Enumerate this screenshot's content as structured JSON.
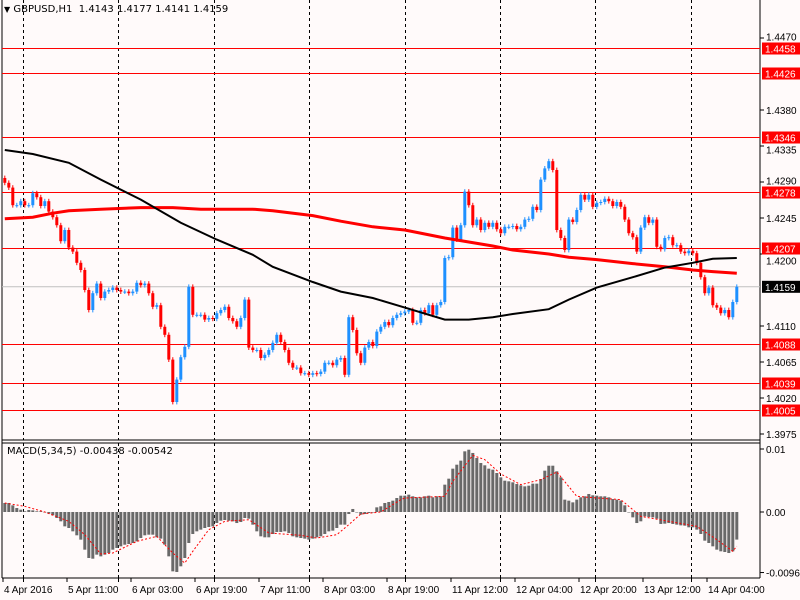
{
  "header": {
    "symbol": "GBPUSD,H1",
    "ohlc": "1.4143 1.4177 1.4141 1.4159",
    "menu_icon": "triangle-down-icon"
  },
  "macd_label": "MACD(5,34,5) -0.00438 -0.00542",
  "colors": {
    "background": "#fffafa",
    "bull": "#1e90ff",
    "bear": "#ff0000",
    "ma_black": "#000000",
    "ma_red": "#ff0000",
    "level": "#ff0000",
    "histogram": "#696969",
    "signal": "#ff0000",
    "current_price_box": "#000000"
  },
  "chart_data": [
    {
      "type": "candlestick",
      "title": "GBPUSD,H1",
      "ylim": [
        1.3975,
        1.447
      ],
      "grid": "vertical dashed",
      "y_ticks": [
        "1.4470",
        "1.4380",
        "1.4335",
        "1.4290",
        "1.4245",
        "1.4200",
        "1.4110",
        "1.4065",
        "1.4020",
        "1.3975"
      ],
      "x_ticks": [
        "4 Apr 2016",
        "5 Apr 11:00",
        "6 Apr 03:00",
        "6 Apr 19:00",
        "7 Apr 11:00",
        "8 Apr 03:00",
        "8 Apr 19:00",
        "11 Apr 12:00",
        "12 Apr 04:00",
        "12 Apr 20:00",
        "13 Apr 12:00",
        "14 Apr 04:00"
      ],
      "current_price": "1.4159",
      "levels": [
        "1.4458",
        "1.4426",
        "1.4346",
        "1.4278",
        "1.4207",
        "1.4088",
        "1.4039",
        "1.4005"
      ],
      "first_open": 1.4295,
      "closes": [
        1.4289,
        1.4283,
        1.4261,
        1.4261,
        1.4266,
        1.4261,
        1.4261,
        1.4276,
        1.4271,
        1.426,
        1.4266,
        1.4253,
        1.4246,
        1.4236,
        1.4216,
        1.423,
        1.4208,
        1.4203,
        1.4189,
        1.418,
        1.4155,
        1.413,
        1.4151,
        1.4163,
        1.4145,
        1.4153,
        1.4155,
        1.4158,
        1.4155,
        1.4153,
        1.4153,
        1.4151,
        1.4153,
        1.4164,
        1.4161,
        1.4163,
        1.4151,
        1.4134,
        1.4136,
        1.4109,
        1.4099,
        1.4068,
        1.4015,
        1.4043,
        1.4071,
        1.4084,
        1.4159,
        1.4124,
        1.4124,
        1.4124,
        1.4118,
        1.412,
        1.4119,
        1.4126,
        1.413,
        1.4134,
        1.412,
        1.4116,
        1.4109,
        1.412,
        1.4143,
        1.4083,
        1.408,
        1.408,
        1.407,
        1.4074,
        1.408,
        1.4089,
        1.4099,
        1.409,
        1.408,
        1.4064,
        1.4058,
        1.4058,
        1.4051,
        1.4051,
        1.4049,
        1.4051,
        1.405,
        1.4053,
        1.4064,
        1.4064,
        1.4061,
        1.4068,
        1.407,
        1.4049,
        1.4121,
        1.4105,
        1.4076,
        1.4064,
        1.4083,
        1.409,
        1.4085,
        1.4103,
        1.4109,
        1.4115,
        1.4111,
        1.412,
        1.4124,
        1.4126,
        1.4128,
        1.413,
        1.4114,
        1.4114,
        1.413,
        1.4126,
        1.4136,
        1.4124,
        1.4136,
        1.414,
        1.4195,
        1.4196,
        1.4233,
        1.4218,
        1.4236,
        1.4278,
        1.4261,
        1.4236,
        1.4243,
        1.423,
        1.4239,
        1.4234,
        1.4239,
        1.4231,
        1.4226,
        1.4234,
        1.4234,
        1.4235,
        1.4231,
        1.4234,
        1.4243,
        1.4244,
        1.4259,
        1.4255,
        1.4293,
        1.4307,
        1.4316,
        1.4305,
        1.423,
        1.422,
        1.4205,
        1.4243,
        1.424,
        1.4255,
        1.4274,
        1.4268,
        1.4274,
        1.4259,
        1.4264,
        1.4265,
        1.4269,
        1.4266,
        1.426,
        1.4265,
        1.4259,
        1.4243,
        1.4226,
        1.4221,
        1.4203,
        1.4233,
        1.4246,
        1.4239,
        1.4243,
        1.4209,
        1.4206,
        1.422,
        1.4221,
        1.4211,
        1.4211,
        1.4203,
        1.4201,
        1.4204,
        1.4201,
        1.4189,
        1.4171,
        1.4151,
        1.4158,
        1.4136,
        1.4133,
        1.4126,
        1.413,
        1.4121,
        1.414,
        1.4159
      ],
      "ma_black": [
        [
          0,
          1.433
        ],
        [
          7,
          1.4325
        ],
        [
          16,
          1.4314
        ],
        [
          24,
          1.4293
        ],
        [
          34,
          1.4268
        ],
        [
          44,
          1.4239
        ],
        [
          53,
          1.4218
        ],
        [
          62,
          1.4199
        ],
        [
          67,
          1.4184
        ],
        [
          77,
          1.4165
        ],
        [
          84,
          1.4153
        ],
        [
          92,
          1.4145
        ],
        [
          100,
          1.4133
        ],
        [
          110,
          1.4118
        ],
        [
          116,
          1.4118
        ],
        [
          122,
          1.4121
        ],
        [
          127,
          1.4125
        ],
        [
          136,
          1.4131
        ],
        [
          141,
          1.4143
        ],
        [
          148,
          1.4158
        ],
        [
          157,
          1.4171
        ],
        [
          165,
          1.4183
        ],
        [
          172,
          1.4189
        ],
        [
          177,
          1.4194
        ],
        [
          183,
          1.4195
        ]
      ],
      "ma_red": [
        [
          0,
          1.4244
        ],
        [
          7,
          1.4246
        ],
        [
          12,
          1.4251
        ],
        [
          16,
          1.4254
        ],
        [
          24,
          1.4256
        ],
        [
          34,
          1.4258
        ],
        [
          42,
          1.4258
        ],
        [
          49,
          1.4256
        ],
        [
          62,
          1.4256
        ],
        [
          67,
          1.4254
        ],
        [
          77,
          1.4248
        ],
        [
          84,
          1.4241
        ],
        [
          92,
          1.4234
        ],
        [
          100,
          1.423
        ],
        [
          105,
          1.4225
        ],
        [
          110,
          1.422
        ],
        [
          116,
          1.4215
        ],
        [
          122,
          1.421
        ],
        [
          127,
          1.4205
        ],
        [
          136,
          1.42
        ],
        [
          141,
          1.4196
        ],
        [
          148,
          1.4193
        ],
        [
          157,
          1.4188
        ],
        [
          165,
          1.4184
        ],
        [
          172,
          1.418
        ],
        [
          177,
          1.4178
        ],
        [
          183,
          1.4176
        ]
      ]
    },
    {
      "type": "bar",
      "title": "MACD(5,34,5)",
      "ylim": [
        -0.00961,
        0.01
      ],
      "y_ticks": [
        "0.01",
        "0.00",
        "-0.00961"
      ],
      "histogram": [
        0.00143,
        0.00143,
        0.00106,
        0.00063,
        0.00037,
        0.00011,
        0.00032,
        0.00026,
        0.00011,
        0.00011,
        0,
        -0.00026,
        -0.00053,
        -0.00095,
        -0.00148,
        -0.00228,
        -0.00254,
        -0.00307,
        -0.0037,
        -0.00439,
        -0.00598,
        -0.0073,
        -0.00741,
        -0.00677,
        -0.00704,
        -0.00677,
        -0.00651,
        -0.00598,
        -0.00571,
        -0.00545,
        -0.00519,
        -0.00508,
        -0.00492,
        -0.00466,
        -0.00413,
        -0.0037,
        -0.0036,
        -0.0036,
        -0.00402,
        -0.00423,
        -0.00519,
        -0.00704,
        -0.00942,
        -0.00952,
        -0.00862,
        -0.0073,
        -0.00492,
        -0.00349,
        -0.00307,
        -0.0028,
        -0.00254,
        -0.00238,
        -0.00228,
        -0.00175,
        -0.00138,
        -0.00127,
        -0.00138,
        -0.00148,
        -0.00175,
        -0.00159,
        -0.00095,
        -0.00106,
        -0.00201,
        -0.00307,
        -0.00386,
        -0.00402,
        -0.00402,
        -0.00349,
        -0.00317,
        -0.00317,
        -0.00307,
        -0.00333,
        -0.00386,
        -0.00402,
        -0.00413,
        -0.00423,
        -0.00439,
        -0.00423,
        -0.00402,
        -0.00386,
        -0.00349,
        -0.00307,
        -0.00296,
        -0.00254,
        -0.00201,
        -0.00201,
        -0.00032,
        0.00048,
        0,
        -0.00042,
        -0.00032,
        -0.00016,
        0,
        0.00074,
        0.0009,
        0.00143,
        0.00159,
        0.0018,
        0.00222,
        0.00259,
        0.00259,
        0.00275,
        0.00249,
        0.00233,
        0.00233,
        0.00249,
        0.00259,
        0.00233,
        0.00249,
        0.00249,
        0.00434,
        0.00529,
        0.00688,
        0.00751,
        0.00815,
        0.00963,
        0.00989,
        0.00937,
        0.00857,
        0.00778,
        0.00741,
        0.00688,
        0.00672,
        0.00619,
        0.0055,
        0.00497,
        0.00487,
        0.00471,
        0.00444,
        0.00423,
        0.00407,
        0.00418,
        0.0045,
        0.0045,
        0.00524,
        0.00656,
        0.00735,
        0.00735,
        0.00646,
        0.0055,
        0.00196,
        0.0018,
        0.00153,
        0.00196,
        0.00233,
        0.00249,
        0.00286,
        0.00265,
        0.00259,
        0.00249,
        0.00249,
        0.00233,
        0.00206,
        0.00196,
        0.0018,
        0.00106,
        0,
        -0.00085,
        -0.00175,
        -0.00148,
        -0.00069,
        -0.00079,
        -0.00085,
        -0.00106,
        -0.0019,
        -0.00185,
        -0.00175,
        -0.0019,
        -0.00201,
        -0.00212,
        -0.00217,
        -0.00243,
        -0.00243,
        -0.0028,
        -0.00349,
        -0.00455,
        -0.00492,
        -0.00545,
        -0.00598,
        -0.00624,
        -0.00635,
        -0.00651,
        -0.00624,
        -0.00438
      ],
      "signal": [
        [
          0,
          0.00143
        ],
        [
          5,
          0.0009
        ],
        [
          10,
          0
        ],
        [
          16,
          -0.00148
        ],
        [
          20,
          -0.0036
        ],
        [
          24,
          -0.00667
        ],
        [
          27,
          -0.00651
        ],
        [
          33,
          -0.00466
        ],
        [
          38,
          -0.00386
        ],
        [
          42,
          -0.00651
        ],
        [
          45,
          -0.0081
        ],
        [
          47,
          -0.00624
        ],
        [
          51,
          -0.0028
        ],
        [
          55,
          -0.00148
        ],
        [
          61,
          -0.00122
        ],
        [
          66,
          -0.00333
        ],
        [
          74,
          -0.0037
        ],
        [
          78,
          -0.00413
        ],
        [
          83,
          -0.0036
        ],
        [
          86,
          -0.00201
        ],
        [
          89,
          -0.00032
        ],
        [
          94,
          0
        ],
        [
          99,
          0.00196
        ],
        [
          100,
          0.00222
        ],
        [
          110,
          0.00249
        ],
        [
          112,
          0.00487
        ],
        [
          117,
          0.00899
        ],
        [
          120,
          0.00831
        ],
        [
          124,
          0.00603
        ],
        [
          129,
          0.00434
        ],
        [
          134,
          0.00513
        ],
        [
          138,
          0.00635
        ],
        [
          143,
          0.00249
        ],
        [
          146,
          0.00233
        ],
        [
          154,
          0.00196
        ],
        [
          159,
          -0.00069
        ],
        [
          166,
          -0.00148
        ],
        [
          173,
          -0.00228
        ],
        [
          178,
          -0.00439
        ],
        [
          182,
          -0.00624
        ],
        [
          183,
          -0.00542
        ]
      ]
    }
  ]
}
